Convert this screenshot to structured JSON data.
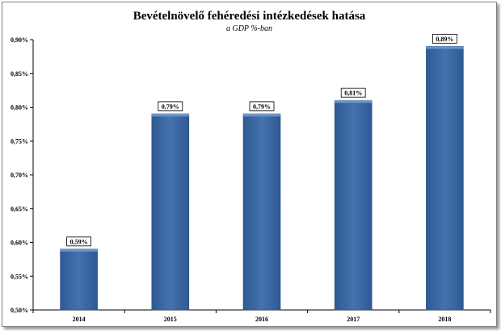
{
  "chart_data": {
    "type": "bar",
    "title": "Bevételnövelő fehéredési intézkedések hatása",
    "subtitle": "a GDP %-ban",
    "categories": [
      "2014",
      "2015",
      "2016",
      "2017",
      "2018"
    ],
    "values": [
      0.59,
      0.79,
      0.79,
      0.81,
      0.89
    ],
    "data_labels": [
      "0,59%",
      "0,79%",
      "0,79%",
      "0,81%",
      "0,89%"
    ],
    "ylim": [
      0.5,
      0.9
    ],
    "yticks": [
      0.5,
      0.55,
      0.6,
      0.65,
      0.7,
      0.75,
      0.8,
      0.85,
      0.9
    ],
    "ytick_labels": [
      "0,50%",
      "0,55%",
      "0,60%",
      "0,65%",
      "0,70%",
      "0,75%",
      "0,80%",
      "0,85%",
      "0,90%"
    ],
    "xlabel": "",
    "ylabel": "",
    "grid": false,
    "legend": "none",
    "bar_color": "#3c6aa6"
  }
}
